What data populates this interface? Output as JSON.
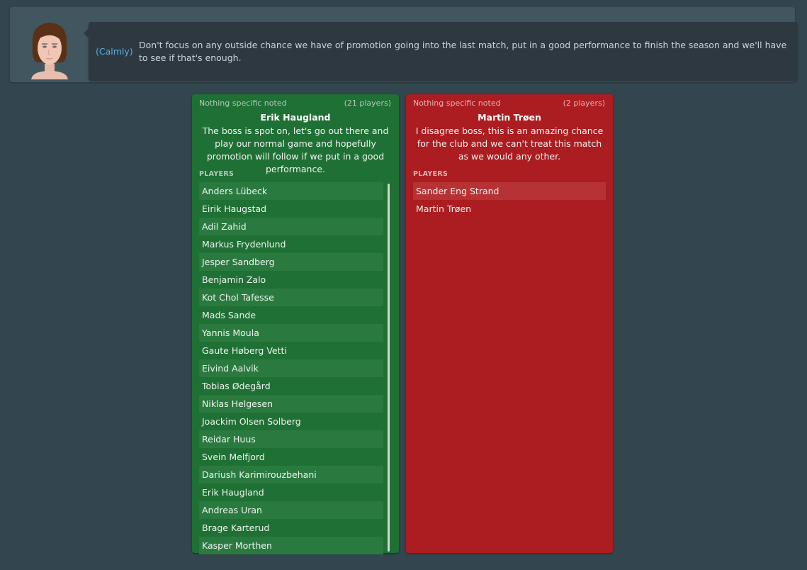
{
  "advisor": {
    "icon": "female-staff-avatar",
    "tone": "(Calmly)",
    "message": "Don't focus on any outside chance we have of promotion going into the last match, put in a good performance to finish the season and we'll have to see if that's enough."
  },
  "groups": [
    {
      "color": "#1f7034",
      "note": "Nothing specific noted",
      "count": "(21 players)",
      "name": "Erik Haugland",
      "quote": "The boss is spot on, let's go out there and play our normal game and hopefully promotion will follow if we put in a good performance.",
      "players_label": "PLAYERS",
      "players": [
        "Anders Lübeck",
        "Eirik Haugstad",
        "Adil Zahid",
        "Markus Frydenlund",
        "Jesper Sandberg",
        "Benjamin Zalo",
        "Kot Chol Tafesse",
        "Mads Sande",
        "Yannis Moula",
        "Gaute Høberg Vetti",
        "Eivind Aalvik",
        "Tobias Ødegård",
        "Niklas Helgesen",
        "Joackim Olsen Solberg",
        "Reidar Huus",
        "Svein Melfjord",
        "Dariush Karimirouzbehani",
        "Erik Haugland",
        "Andreas Uran",
        "Brage Karterud",
        "Kasper Morthen"
      ]
    },
    {
      "color": "#ab1d20",
      "note": "Nothing specific noted",
      "count": "(2 players)",
      "name": "Martin Trøen",
      "quote": "I disagree boss, this is an amazing chance for the club and we can't treat this match as we would any other.",
      "players_label": "PLAYERS",
      "players": [
        "Sander Eng Strand",
        "Martin Trøen"
      ]
    }
  ]
}
